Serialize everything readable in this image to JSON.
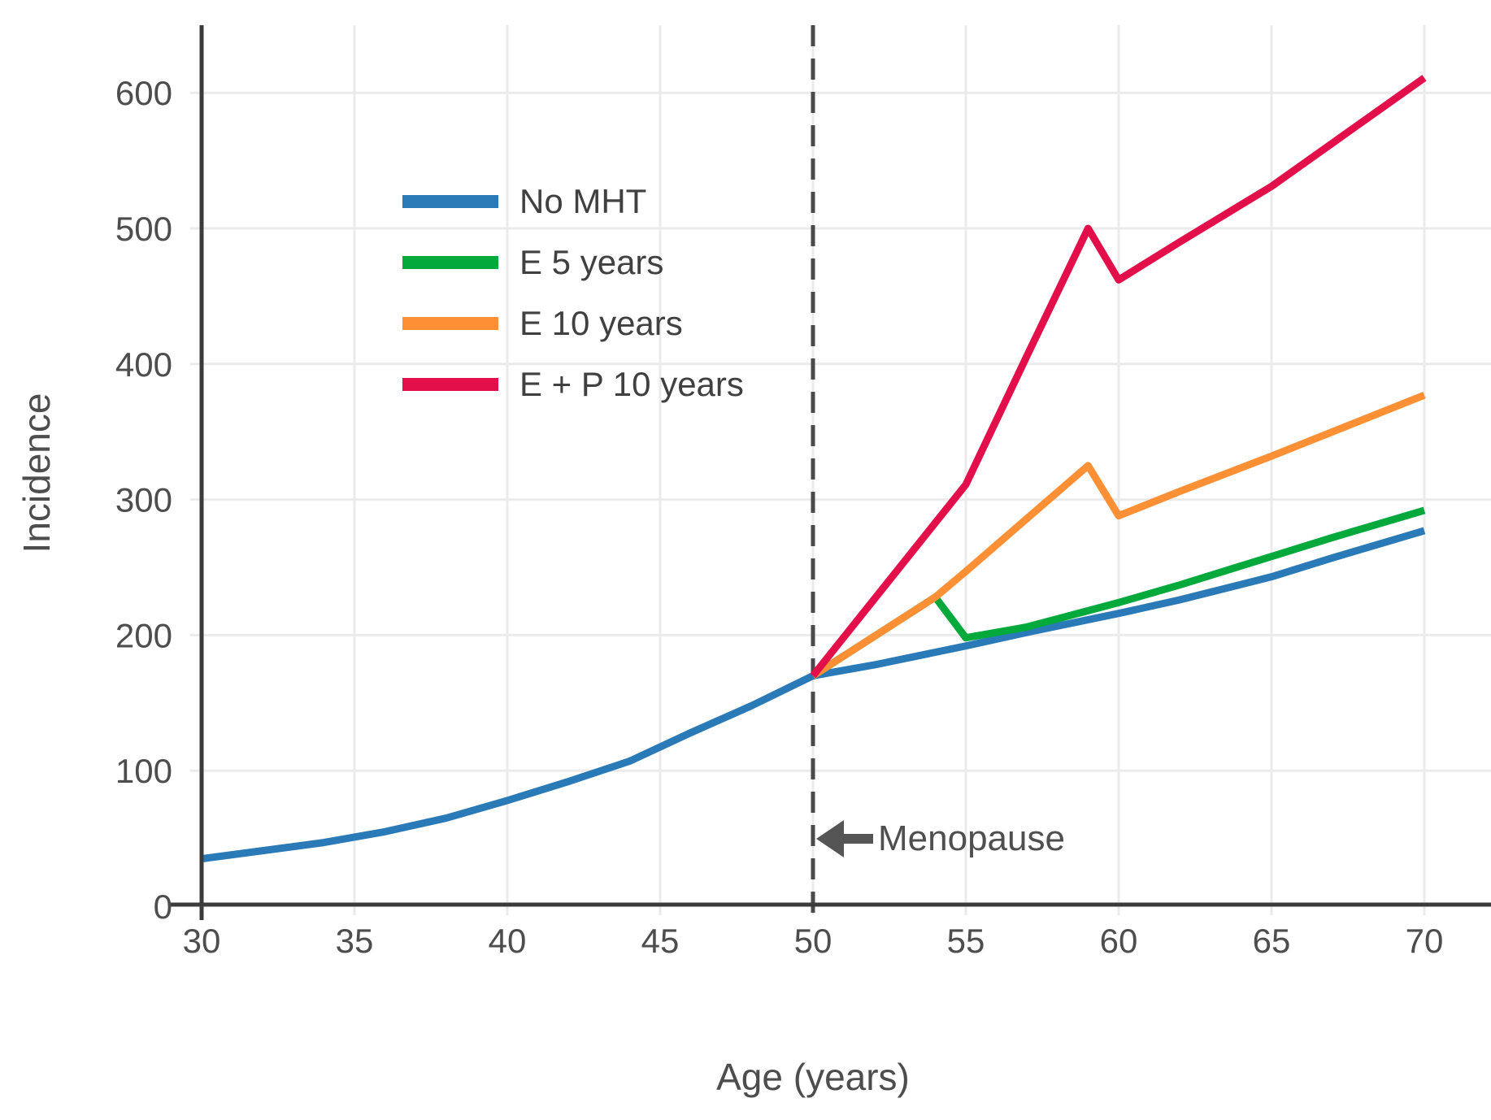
{
  "page": {
    "background": "#ffffff"
  },
  "chart_data": {
    "type": "line",
    "title": "",
    "xlabel": "Age (years)",
    "ylabel": "Incidence",
    "x_ticks": [
      30,
      35,
      40,
      45,
      50,
      55,
      60,
      65,
      70
    ],
    "y_ticks": [
      0,
      100,
      200,
      300,
      400,
      500,
      600
    ],
    "xlim": [
      30,
      72.2
    ],
    "ylim": [
      0,
      649
    ],
    "grid": true,
    "grid_color": "#ebebeb",
    "axis_color": "#3b3b3b",
    "tick_label_color": "#4d4d4d",
    "legend_position": "upper-left-inside",
    "reference_line": {
      "x": 50,
      "style": "dashed",
      "color": "#4a4a4a"
    },
    "annotation": {
      "text": "Menopause",
      "arrow_direction": "left",
      "points_to_x": 50,
      "at_y_value": 50,
      "color": "#4f4f4f"
    },
    "series": [
      {
        "name": "No MHT",
        "color": "#2b7ab8",
        "points": [
          [
            30,
            35
          ],
          [
            32,
            41
          ],
          [
            34,
            47
          ],
          [
            36,
            55
          ],
          [
            38,
            65
          ],
          [
            40,
            78
          ],
          [
            42,
            92
          ],
          [
            44,
            107
          ],
          [
            46,
            128
          ],
          [
            48,
            148
          ],
          [
            50,
            170
          ],
          [
            52,
            178
          ],
          [
            55,
            192
          ],
          [
            57,
            202
          ],
          [
            60,
            216
          ],
          [
            62,
            226
          ],
          [
            65,
            243
          ],
          [
            67,
            257
          ],
          [
            70,
            277
          ]
        ]
      },
      {
        "name": "E 5 years",
        "color": "#04a93c",
        "points": [
          [
            50,
            170
          ],
          [
            52,
            199
          ],
          [
            54,
            228
          ],
          [
            55,
            198
          ],
          [
            57,
            206
          ],
          [
            60,
            224
          ],
          [
            62,
            237
          ],
          [
            65,
            258
          ],
          [
            67,
            272
          ],
          [
            70,
            292
          ]
        ]
      },
      {
        "name": "E 10 years",
        "color": "#fd8f35",
        "points": [
          [
            50,
            170
          ],
          [
            52,
            199
          ],
          [
            54,
            228
          ],
          [
            55,
            247
          ],
          [
            57,
            286
          ],
          [
            59,
            325
          ],
          [
            60,
            288
          ],
          [
            62,
            306
          ],
          [
            65,
            332
          ],
          [
            67,
            350
          ],
          [
            70,
            377
          ]
        ]
      },
      {
        "name": "E + P 10 years",
        "color": "#e30f4b",
        "points": [
          [
            50,
            170
          ],
          [
            55,
            311
          ],
          [
            57,
            406
          ],
          [
            59,
            500
          ],
          [
            60,
            462
          ],
          [
            62,
            490
          ],
          [
            65,
            531
          ],
          [
            67,
            563
          ],
          [
            70,
            611
          ]
        ]
      }
    ]
  }
}
